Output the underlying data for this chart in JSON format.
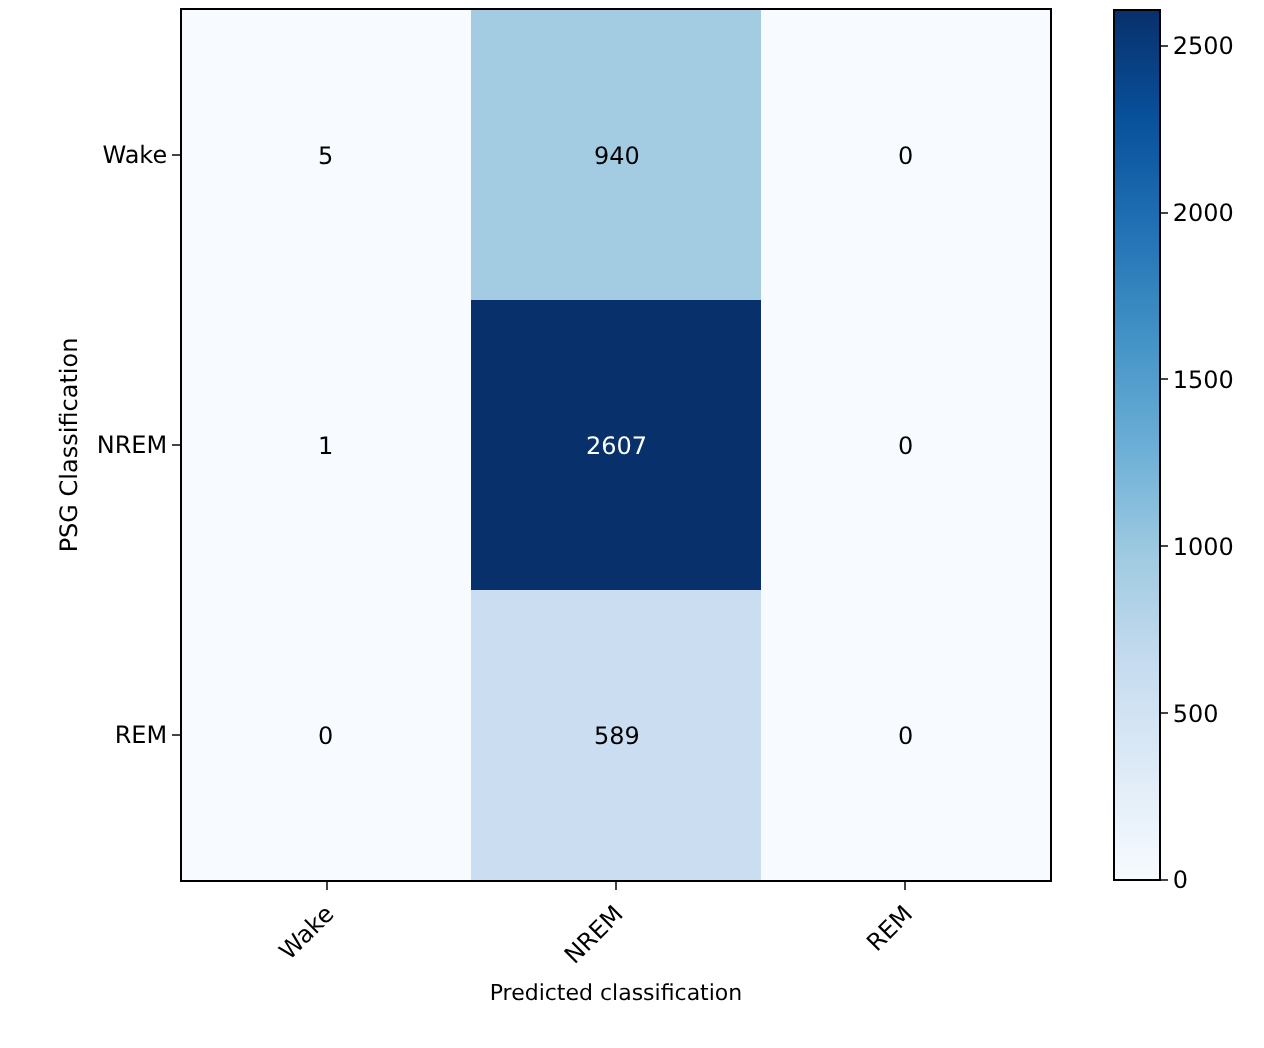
{
  "chart_data": {
    "type": "heatmap",
    "xlabel": "Predicted classification",
    "ylabel": "PSG Classification",
    "categories": [
      "Wake",
      "NREM",
      "REM"
    ],
    "y_categories": [
      "Wake",
      "NREM",
      "REM"
    ],
    "cells": [
      [
        5,
        940,
        0
      ],
      [
        1,
        2607,
        0
      ],
      [
        0,
        589,
        0
      ]
    ],
    "clim": [
      0,
      2607
    ],
    "cticks": [
      0,
      500,
      1000,
      1500,
      2000,
      2500
    ],
    "data_labels": true
  }
}
